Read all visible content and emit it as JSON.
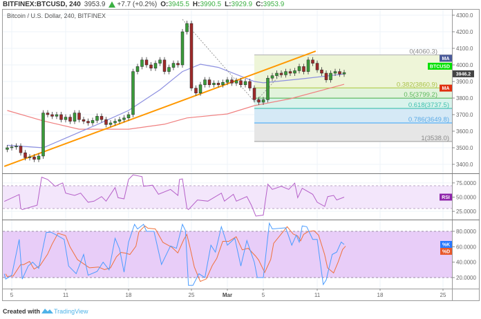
{
  "header": {
    "symbol": "BITFINEX:BTCUSD, 240",
    "last": "3953.9",
    "change": "+7.7 (+0.2%)",
    "o_label": "O:",
    "o": "3945.5",
    "h_label": "H:",
    "h": "3990.5",
    "l_label": "L:",
    "l": "3929.9",
    "c_label": "C:",
    "c": "3953.9",
    "up_icon": "triangle-up-icon"
  },
  "footer": {
    "created_with": "Created with",
    "brand": "TradingView",
    "logo_icon": "tradingview-cloud-logo-icon"
  },
  "colors": {
    "up": "#3a9a3a",
    "down": "#9e2a2a",
    "ma50": "#8c8fe0",
    "ma200": "#f08080",
    "trendline": "#ff9800",
    "rsi": "#b55fc8",
    "stoch_k": "#4a9cff",
    "stoch_d": "#f0703a",
    "accent_green": "#3cb043"
  },
  "chart_data": [
    {
      "type": "candlestick",
      "title": "Bitcoin / U.S. Dollar, 240, BITFINEX",
      "ylim": [
        3350,
        4330
      ],
      "yticks": [
        "4300.0",
        "4200.0",
        "4100.0",
        "4000.0",
        "3900.0",
        "3800.0",
        "3700.0",
        "3600.0",
        "3500.0",
        "3400.0"
      ],
      "xticks": [
        "5",
        "11",
        "18",
        "25",
        "Mar",
        "5",
        "11",
        "18",
        "25"
      ],
      "xtick_dates": [
        "Feb 5 00:00",
        "Feb 11 00:00",
        "Feb 18 00:00",
        "Feb 25 00:00",
        "Mar 1 00:00",
        "Mar 5 00:00",
        "Mar 11 00:00",
        "Mar 18 00:00",
        "Mar 25 00:00"
      ],
      "grid": true,
      "closes": [
        [
          "Feb 4 12:00",
          3500
        ],
        [
          "Feb 5 00:00",
          3505
        ],
        [
          "Feb 5 12:00",
          3510
        ],
        [
          "Feb 6 00:00",
          3470
        ],
        [
          "Feb 6 12:00",
          3440
        ],
        [
          "Feb 7 00:00",
          3445
        ],
        [
          "Feb 7 12:00",
          3430
        ],
        [
          "Feb 8 00:00",
          3450
        ],
        [
          "Feb 8 12:00",
          3710
        ],
        [
          "Feb 9 00:00",
          3700
        ],
        [
          "Feb 9 12:00",
          3690
        ],
        [
          "Feb 10 00:00",
          3700
        ],
        [
          "Feb 10 12:00",
          3670
        ],
        [
          "Feb 11 00:00",
          3685
        ],
        [
          "Feb 11 12:00",
          3660
        ],
        [
          "Feb 12 00:00",
          3710
        ],
        [
          "Feb 12 12:00",
          3670
        ],
        [
          "Feb 13 00:00",
          3660
        ],
        [
          "Feb 13 12:00",
          3650
        ],
        [
          "Feb 14 00:00",
          3665
        ],
        [
          "Feb 14 12:00",
          3690
        ],
        [
          "Feb 15 00:00",
          3670
        ],
        [
          "Feb 15 12:00",
          3640
        ],
        [
          "Feb 16 00:00",
          3650
        ],
        [
          "Feb 16 12:00",
          3660
        ],
        [
          "Feb 17 00:00",
          3670
        ],
        [
          "Feb 17 12:00",
          3680
        ],
        [
          "Feb 18 00:00",
          3700
        ],
        [
          "Feb 18 12:00",
          3960
        ],
        [
          "Feb 19 00:00",
          3990
        ],
        [
          "Feb 19 12:00",
          4030
        ],
        [
          "Feb 20 00:00",
          4000
        ],
        [
          "Feb 20 12:00",
          3980
        ],
        [
          "Feb 21 00:00",
          4010
        ],
        [
          "Feb 21 12:00",
          4030
        ],
        [
          "Feb 22 00:00",
          3960
        ],
        [
          "Feb 22 12:00",
          3985
        ],
        [
          "Feb 23 00:00",
          4010
        ],
        [
          "Feb 23 12:00",
          4000
        ],
        [
          "Feb 24 00:00",
          4200
        ],
        [
          "Feb 24 12:00",
          4250
        ],
        [
          "Feb 25 00:00",
          3860
        ],
        [
          "Feb 25 12:00",
          3830
        ],
        [
          "Feb 26 00:00",
          3880
        ],
        [
          "Feb 26 12:00",
          3910
        ],
        [
          "Feb 27 00:00",
          3880
        ],
        [
          "Feb 27 12:00",
          3890
        ],
        [
          "Feb 28 00:00",
          3880
        ],
        [
          "Feb 28 12:00",
          3895
        ],
        [
          "Mar 1 00:00",
          3910
        ],
        [
          "Mar 1 12:00",
          3890
        ],
        [
          "Mar 2 00:00",
          3905
        ],
        [
          "Mar 2 12:00",
          3880
        ],
        [
          "Mar 3 00:00",
          3900
        ],
        [
          "Mar 3 12:00",
          3860
        ],
        [
          "Mar 4 00:00",
          3790
        ],
        [
          "Mar 4 12:00",
          3775
        ],
        [
          "Mar 5 00:00",
          3790
        ],
        [
          "Mar 5 12:00",
          3920
        ],
        [
          "Mar 6 00:00",
          3935
        ],
        [
          "Mar 6 12:00",
          3950
        ],
        [
          "Mar 7 00:00",
          3940
        ],
        [
          "Mar 7 12:00",
          3960
        ],
        [
          "Mar 8 00:00",
          3950
        ],
        [
          "Mar 8 12:00",
          3965
        ],
        [
          "Mar 9 00:00",
          3990
        ],
        [
          "Mar 9 12:00",
          3960
        ],
        [
          "Mar 10 00:00",
          4030
        ],
        [
          "Mar 10 12:00",
          4010
        ],
        [
          "Mar 11 00:00",
          3970
        ],
        [
          "Mar 11 12:00",
          3950
        ],
        [
          "Mar 12 00:00",
          3910
        ],
        [
          "Mar 12 12:00",
          3950
        ],
        [
          "Mar 13 00:00",
          3960
        ],
        [
          "Mar 13 12:00",
          3945
        ],
        [
          "Mar 14 00:00",
          3953.9
        ]
      ],
      "ma_fast": [
        [
          "Feb 4 12:00",
          3515
        ],
        [
          "Feb 8 12:00",
          3500
        ],
        [
          "Feb 14 12:00",
          3640
        ],
        [
          "Feb 18 00:00",
          3725
        ],
        [
          "Feb 21 12:00",
          3850
        ],
        [
          "Feb 24 00:00",
          3960
        ],
        [
          "Feb 26 00:00",
          4004
        ],
        [
          "Feb 28 00:00",
          3985
        ],
        [
          "Mar 4 00:00",
          3900
        ],
        [
          "Mar 5 00:00",
          3892
        ],
        [
          "Mar 9 12:00",
          3917
        ],
        [
          "Mar 14 00:00",
          3945
        ]
      ],
      "ma_slow": [
        [
          "Feb 4 12:00",
          3725
        ],
        [
          "Feb 8 12:00",
          3662
        ],
        [
          "Feb 12 12:00",
          3612
        ],
        [
          "Feb 18 00:00",
          3612
        ],
        [
          "Feb 22 00:00",
          3642
        ],
        [
          "Feb 24 12:00",
          3680
        ],
        [
          "Mar 1 00:00",
          3704
        ],
        [
          "Mar 4 00:00",
          3754
        ],
        [
          "Mar 8 00:00",
          3796
        ],
        [
          "Mar 14 00:00",
          3883
        ]
      ],
      "trendline": [
        [
          "Feb 4 04:00",
          3388
        ],
        [
          "Mar 10 20:00",
          4083
        ]
      ],
      "dashed_lines": [
        [
          [
            "Feb 24 00:00",
            4275
          ],
          [
            "Mar 4 00:00",
            3780
          ]
        ],
        [
          [
            "Mar 4 04:00",
            3780
          ],
          [
            "Mar 7 04:00",
            3957
          ]
        ]
      ],
      "fibonacci": {
        "start_date": "Mar 4 00:00",
        "levels": [
          {
            "label": "0(4060.3)",
            "ratio": 0,
            "price": 4060.3,
            "line": "#bbbbbb",
            "fill": "#eef5d8",
            "text": "#888888"
          },
          {
            "label": "0.382(3860.9)",
            "ratio": 0.382,
            "price": 3860.9,
            "line": "#b5cf5a",
            "fill": "#e2f3dc",
            "text": "#a9c24a"
          },
          {
            "label": "0.5(3799.2)",
            "ratio": 0.5,
            "price": 3799.2,
            "line": "#6cc070",
            "fill": "#d9f3ec",
            "text": "#5cb85c"
          },
          {
            "label": "0.618(3737.5)",
            "ratio": 0.618,
            "price": 3737.5,
            "line": "#4dc4b4",
            "fill": "#d5e9f6",
            "text": "#3cbfae"
          },
          {
            "label": "0.786(3649.8)",
            "ratio": 0.786,
            "price": 3649.8,
            "line": "#64b5f6",
            "fill": "#e6e6e6",
            "text": "#5aa9e6"
          },
          {
            "label": "1(3538.0)",
            "ratio": 1,
            "price": 3538.0,
            "line": "#aaaaaa",
            "fill": null,
            "text": "#888888"
          }
        ]
      },
      "price_tags": [
        {
          "label": "MA",
          "price": 4040,
          "color": "#4a5a9a"
        },
        {
          "label": "BTCUSD",
          "price": 3992,
          "color": "#00e000"
        },
        {
          "label": "3946.2",
          "price": 3946.2,
          "color": "#444444"
        },
        {
          "label": "MA",
          "price": 3860,
          "color": "#e03010"
        }
      ]
    },
    {
      "type": "line",
      "name": "RSI",
      "ylim": [
        10,
        95
      ],
      "band": [
        30,
        70
      ],
      "yticks": [
        "75.0000",
        "50.0000",
        "25.0000"
      ],
      "ytick_values": [
        75,
        50,
        25
      ],
      "tag": {
        "label": "RSI",
        "value": 50,
        "color": "#8e24aa"
      },
      "values": [
        [
          "Feb 4 04:00",
          42.5
        ],
        [
          "Feb 5 20:00",
          54.6
        ],
        [
          "Feb 6 00:00",
          30.4
        ],
        [
          "Feb 6 04:00",
          28
        ],
        [
          "Feb 7 20:00",
          36
        ],
        [
          "Feb 8 08:00",
          85
        ],
        [
          "Feb 9 00:00",
          81
        ],
        [
          "Feb 9 20:00",
          69
        ],
        [
          "Feb 10 16:00",
          75
        ],
        [
          "Feb 11 00:00",
          57
        ],
        [
          "Feb 12 00:00",
          53
        ],
        [
          "Feb 12 16:00",
          57
        ],
        [
          "Feb 13 12:00",
          41
        ],
        [
          "Feb 14 04:00",
          43
        ],
        [
          "Feb 15 00:00",
          51
        ],
        [
          "Feb 15 12:00",
          43
        ],
        [
          "Feb 16 12:00",
          66.7
        ],
        [
          "Feb 16 20:00",
          49
        ],
        [
          "Feb 17 12:00",
          47
        ],
        [
          "Feb 18 00:00",
          81
        ],
        [
          "Feb 18 12:00",
          89
        ],
        [
          "Feb 19 12:00",
          86
        ],
        [
          "Feb 19 16:00",
          69
        ],
        [
          "Feb 20 16:00",
          71
        ],
        [
          "Feb 21 08:00",
          55
        ],
        [
          "Feb 22 16:00",
          63.6
        ],
        [
          "Feb 23 12:00",
          53
        ],
        [
          "Feb 23 16:00",
          81
        ],
        [
          "Feb 24 00:00",
          82
        ],
        [
          "Feb 24 12:00",
          30.4
        ],
        [
          "Feb 24 16:00",
          28
        ],
        [
          "Feb 25 16:00",
          45
        ],
        [
          "Feb 26 20:00",
          43
        ],
        [
          "Feb 28 08:00",
          57
        ],
        [
          "Feb 28 16:00",
          43
        ],
        [
          "Mar 1 16:00",
          55
        ],
        [
          "Mar 2 00:00",
          43
        ],
        [
          "Mar 3 04:00",
          51
        ],
        [
          "Mar 3 16:00",
          36
        ],
        [
          "Mar 4 04:00",
          16.7
        ],
        [
          "Mar 5 00:00",
          18.5
        ],
        [
          "Mar 5 12:00",
          72.8
        ],
        [
          "Mar 6 00:00",
          63.6
        ],
        [
          "Mar 7 00:00",
          69
        ],
        [
          "Mar 7 20:00",
          63.6
        ],
        [
          "Mar 8 12:00",
          74.6
        ],
        [
          "Mar 8 20:00",
          49
        ],
        [
          "Mar 9 08:00",
          65.5
        ],
        [
          "Mar 10 12:00",
          55
        ],
        [
          "Mar 11 00:00",
          41
        ],
        [
          "Mar 11 20:00",
          33.7
        ],
        [
          "Mar 12 04:00",
          51
        ],
        [
          "Mar 12 20:00",
          53
        ],
        [
          "Mar 13 04:00",
          45
        ],
        [
          "Mar 14 00:00",
          50
        ]
      ]
    },
    {
      "type": "line",
      "name": "Stochastic",
      "ylim": [
        5,
        95
      ],
      "band": [
        20,
        80
      ],
      "yticks": [
        "80.0000",
        "60.0000",
        "40.0000",
        "20.0000"
      ],
      "ytick_values": [
        80,
        60,
        40,
        20
      ],
      "tags": [
        {
          "label": "%K",
          "value": 63,
          "color": "#2979ff"
        },
        {
          "label": "%D",
          "value": 54,
          "color": "#e8582a"
        }
      ],
      "k_values": [
        [
          "Feb 4 04:00",
          24.8
        ],
        [
          "Feb 4 08:00",
          18
        ],
        [
          "Feb 5 00:00",
          23
        ],
        [
          "Feb 5 20:00",
          69.5
        ],
        [
          "Feb 6 04:00",
          18
        ],
        [
          "Feb 6 20:00",
          35
        ],
        [
          "Feb 7 08:00",
          40
        ],
        [
          "Feb 8 00:00",
          32
        ],
        [
          "Feb 8 20:00",
          78.5
        ],
        [
          "Feb 9 08:00",
          79
        ],
        [
          "Feb 10 00:00",
          75
        ],
        [
          "Feb 10 20:00",
          69.5
        ],
        [
          "Feb 11 08:00",
          35
        ],
        [
          "Feb 12 04:00",
          25
        ],
        [
          "Feb 13 00:00",
          50
        ],
        [
          "Feb 13 12:00",
          23
        ],
        [
          "Feb 14 12:00",
          28
        ],
        [
          "Feb 15 04:00",
          40
        ],
        [
          "Feb 15 20:00",
          30
        ],
        [
          "Feb 16 12:00",
          71
        ],
        [
          "Feb 17 00:00",
          57
        ],
        [
          "Feb 17 12:00",
          27
        ],
        [
          "Feb 18 00:00",
          66
        ],
        [
          "Feb 18 16:00",
          89
        ],
        [
          "Feb 19 00:00",
          83
        ],
        [
          "Feb 19 16:00",
          89
        ],
        [
          "Feb 20 00:00",
          80
        ],
        [
          "Feb 20 20:00",
          80
        ],
        [
          "Feb 21 16:00",
          37
        ],
        [
          "Feb 22 16:00",
          61
        ],
        [
          "Feb 23 08:00",
          58
        ],
        [
          "Feb 24 00:00",
          89
        ],
        [
          "Feb 24 08:00",
          81
        ],
        [
          "Feb 24 16:00",
          10
        ],
        [
          "Feb 25 04:00",
          10
        ],
        [
          "Feb 25 20:00",
          25
        ],
        [
          "Feb 26 12:00",
          20
        ],
        [
          "Feb 27 04:00",
          62
        ],
        [
          "Feb 27 16:00",
          53
        ],
        [
          "Feb 28 08:00",
          86
        ],
        [
          "Mar 1 00:00",
          62
        ],
        [
          "Mar 1 20:00",
          71
        ],
        [
          "Mar 2 12:00",
          35
        ],
        [
          "Mar 3 04:00",
          68
        ],
        [
          "Mar 4 00:00",
          40
        ],
        [
          "Mar 4 08:00",
          20
        ],
        [
          "Mar 5 00:00",
          20
        ],
        [
          "Mar 5 16:00",
          90.5
        ],
        [
          "Mar 6 00:00",
          83
        ],
        [
          "Mar 7 12:00",
          84.6
        ],
        [
          "Mar 8 04:00",
          62
        ],
        [
          "Mar 8 16:00",
          75
        ],
        [
          "Mar 9 00:00",
          66
        ],
        [
          "Mar 9 08:00",
          87
        ],
        [
          "Mar 9 20:00",
          86
        ],
        [
          "Mar 10 12:00",
          69.5
        ],
        [
          "Mar 11 00:00",
          69.5
        ],
        [
          "Mar 11 16:00",
          11
        ],
        [
          "Mar 12 00:00",
          17
        ],
        [
          "Mar 12 16:00",
          50
        ],
        [
          "Mar 13 04:00",
          53
        ],
        [
          "Mar 13 16:00",
          66
        ],
        [
          "Mar 14 00:00",
          63
        ]
      ]
    }
  ]
}
